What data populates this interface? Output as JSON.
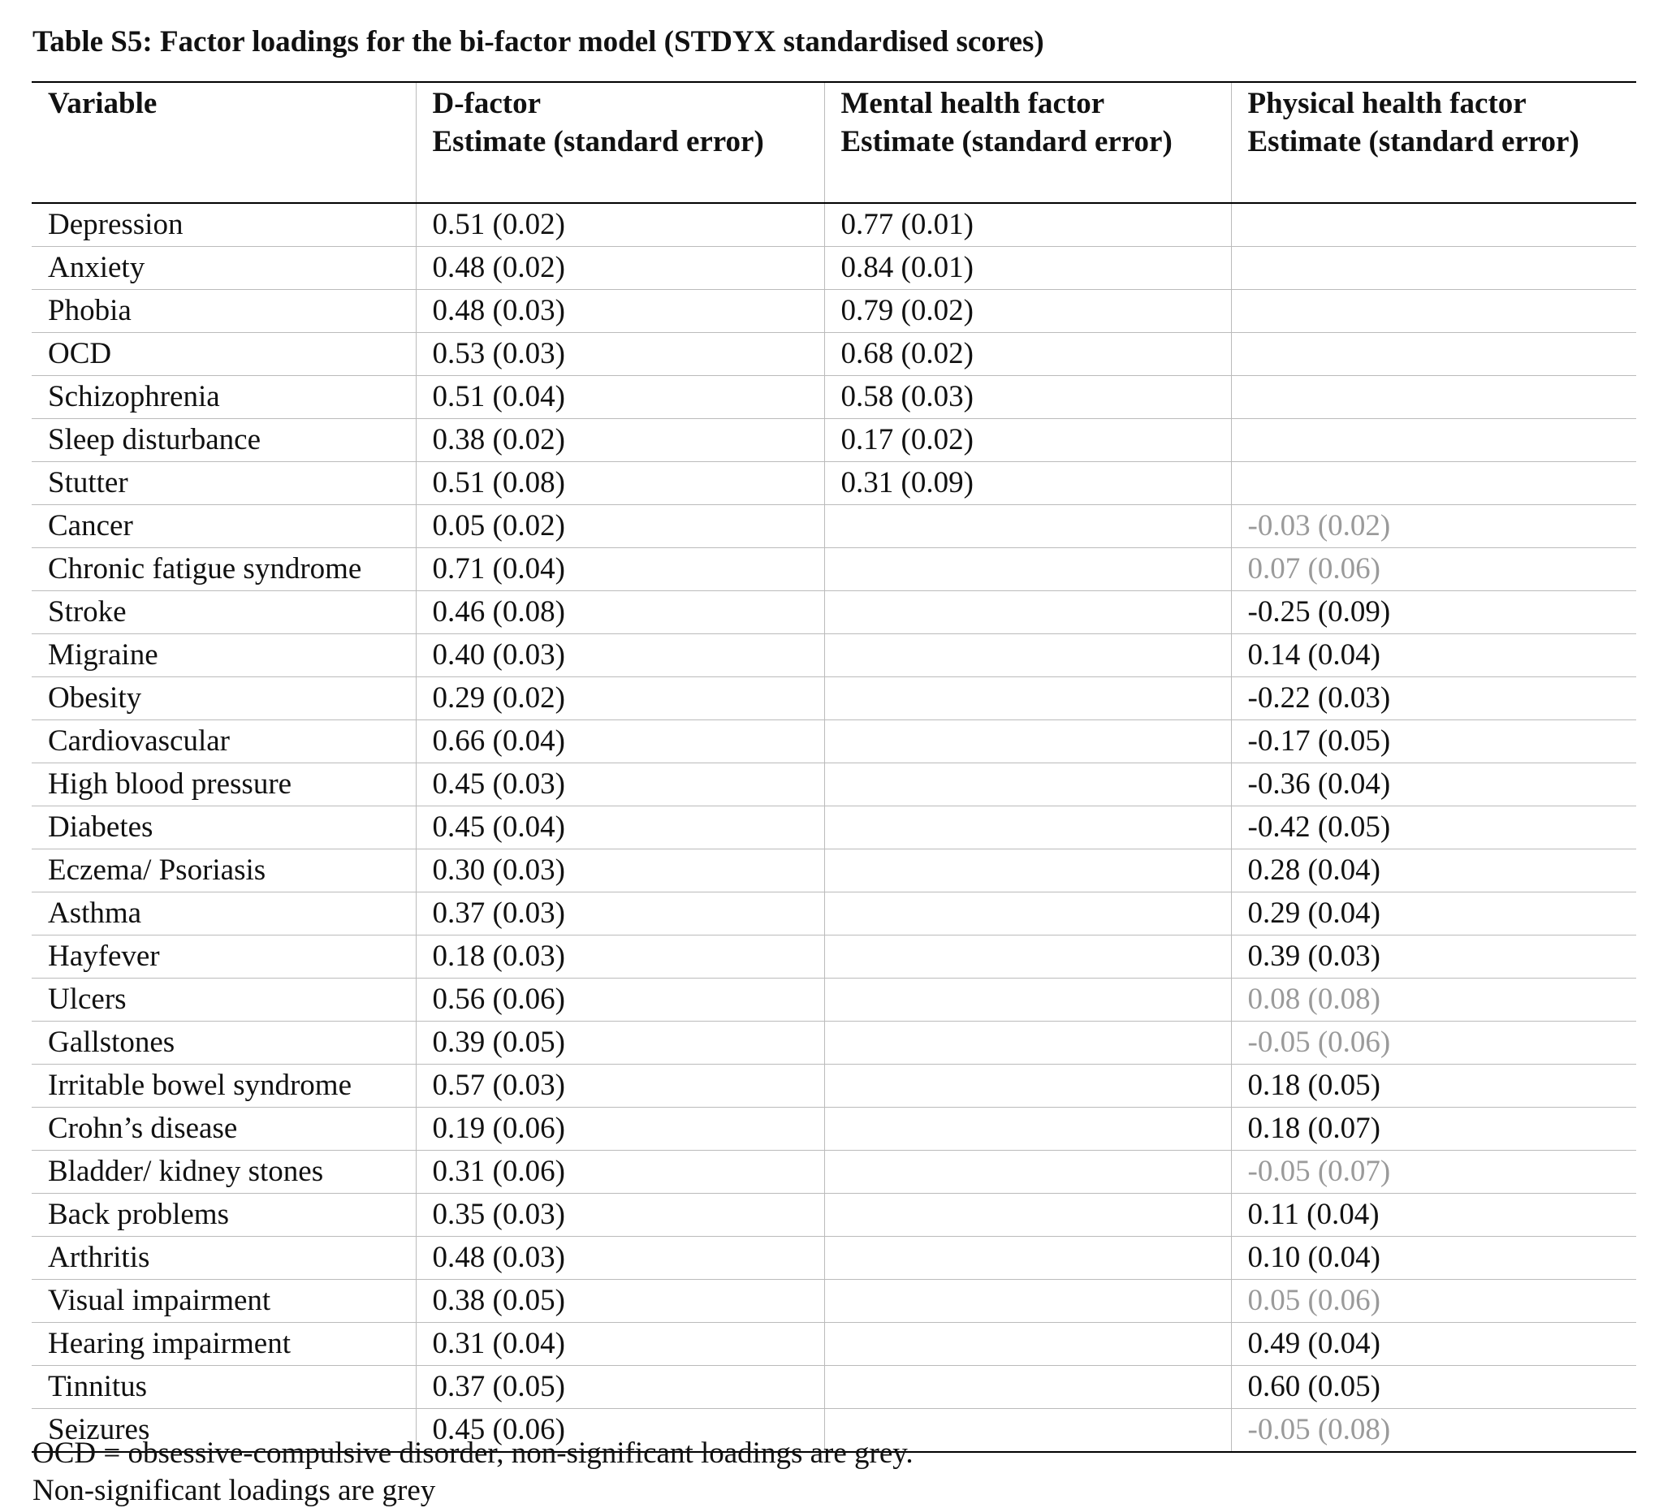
{
  "title": "Table S5: Factor loadings for the bi-factor model (STDYX standardised scores)",
  "table": {
    "headers": [
      [
        "Variable"
      ],
      [
        "D-factor",
        "Estimate (standard error)"
      ],
      [
        "Mental health factor",
        "Estimate (standard error)"
      ],
      [
        "Physical health factor",
        "Estimate (standard error)"
      ]
    ],
    "rows": [
      [
        "Depression",
        "0.51 (0.02)",
        "0.77 (0.01)",
        null
      ],
      [
        "Anxiety",
        "0.48 (0.02)",
        "0.84 (0.01)",
        null
      ],
      [
        "Phobia",
        "0.48 (0.03)",
        "0.79 (0.02)",
        null
      ],
      [
        "OCD",
        "0.53 (0.03)",
        "0.68 (0.02)",
        null
      ],
      [
        "Schizophrenia",
        "0.51 (0.04)",
        "0.58 (0.03)",
        null
      ],
      [
        "Sleep disturbance",
        "0.38 (0.02)",
        "0.17 (0.02)",
        null
      ],
      [
        "Stutter",
        "0.51 (0.08)",
        "0.31 (0.09)",
        null
      ],
      [
        "Cancer",
        "0.05 (0.02)",
        null,
        {
          "text": "-0.03 (0.02)",
          "color": "#9a9a9a"
        }
      ],
      [
        "Chronic fatigue syndrome",
        "0.71 (0.04)",
        null,
        {
          "text": "0.07 (0.06)",
          "color": "#9a9a9a"
        }
      ],
      [
        "Stroke",
        "0.46 (0.08)",
        null,
        "-0.25 (0.09)"
      ],
      [
        "Migraine",
        "0.40 (0.03)",
        null,
        "0.14 (0.04)"
      ],
      [
        "Obesity",
        "0.29 (0.02)",
        null,
        "-0.22 (0.03)"
      ],
      [
        "Cardiovascular",
        "0.66 (0.04)",
        null,
        "-0.17 (0.05)"
      ],
      [
        "High blood pressure",
        "0.45 (0.03)",
        null,
        "-0.36 (0.04)"
      ],
      [
        "Diabetes",
        "0.45 (0.04)",
        null,
        "-0.42 (0.05)"
      ],
      [
        "Eczema/ Psoriasis",
        "0.30 (0.03)",
        null,
        "0.28 (0.04)"
      ],
      [
        "Asthma",
        "0.37 (0.03)",
        null,
        "0.29 (0.04)"
      ],
      [
        "Hayfever",
        "0.18 (0.03)",
        null,
        "0.39 (0.03)"
      ],
      [
        "Ulcers",
        "0.56 (0.06)",
        null,
        {
          "text": "0.08 (0.08)",
          "color": "#9a9a9a"
        }
      ],
      [
        "Gallstones",
        "0.39 (0.05)",
        null,
        {
          "text": "-0.05 (0.06)",
          "color": "#9a9a9a"
        }
      ],
      [
        "Irritable bowel syndrome",
        "0.57 (0.03)",
        null,
        "0.18 (0.05)"
      ],
      [
        "Crohn’s disease",
        "0.19 (0.06)",
        null,
        "0.18 (0.07)"
      ],
      [
        "Bladder/ kidney stones",
        "0.31 (0.06)",
        null,
        {
          "text": "-0.05 (0.07)",
          "color": "#9a9a9a"
        }
      ],
      [
        "Back problems",
        "0.35 (0.03)",
        null,
        "0.11 (0.04)"
      ],
      [
        "Arthritis",
        "0.48 (0.03)",
        null,
        "0.10 (0.04)"
      ],
      [
        "Visual impairment",
        "0.38 (0.05)",
        null,
        {
          "text": "0.05 (0.06)",
          "color": "#9a9a9a"
        }
      ],
      [
        "Hearing impairment",
        "0.31 (0.04)",
        null,
        "0.49 (0.04)"
      ],
      [
        "Tinnitus",
        "0.37 (0.05)",
        null,
        "0.60 (0.05)"
      ],
      [
        "Seizures",
        "0.45 (0.06)",
        null,
        {
          "text": "-0.05 (0.08)",
          "color": "#9a9a9a"
        }
      ]
    ]
  },
  "footnotes": [
    "OCD = obsessive-compulsive disorder, non-significant loadings are grey.",
    "Non-significant loadings are grey"
  ]
}
